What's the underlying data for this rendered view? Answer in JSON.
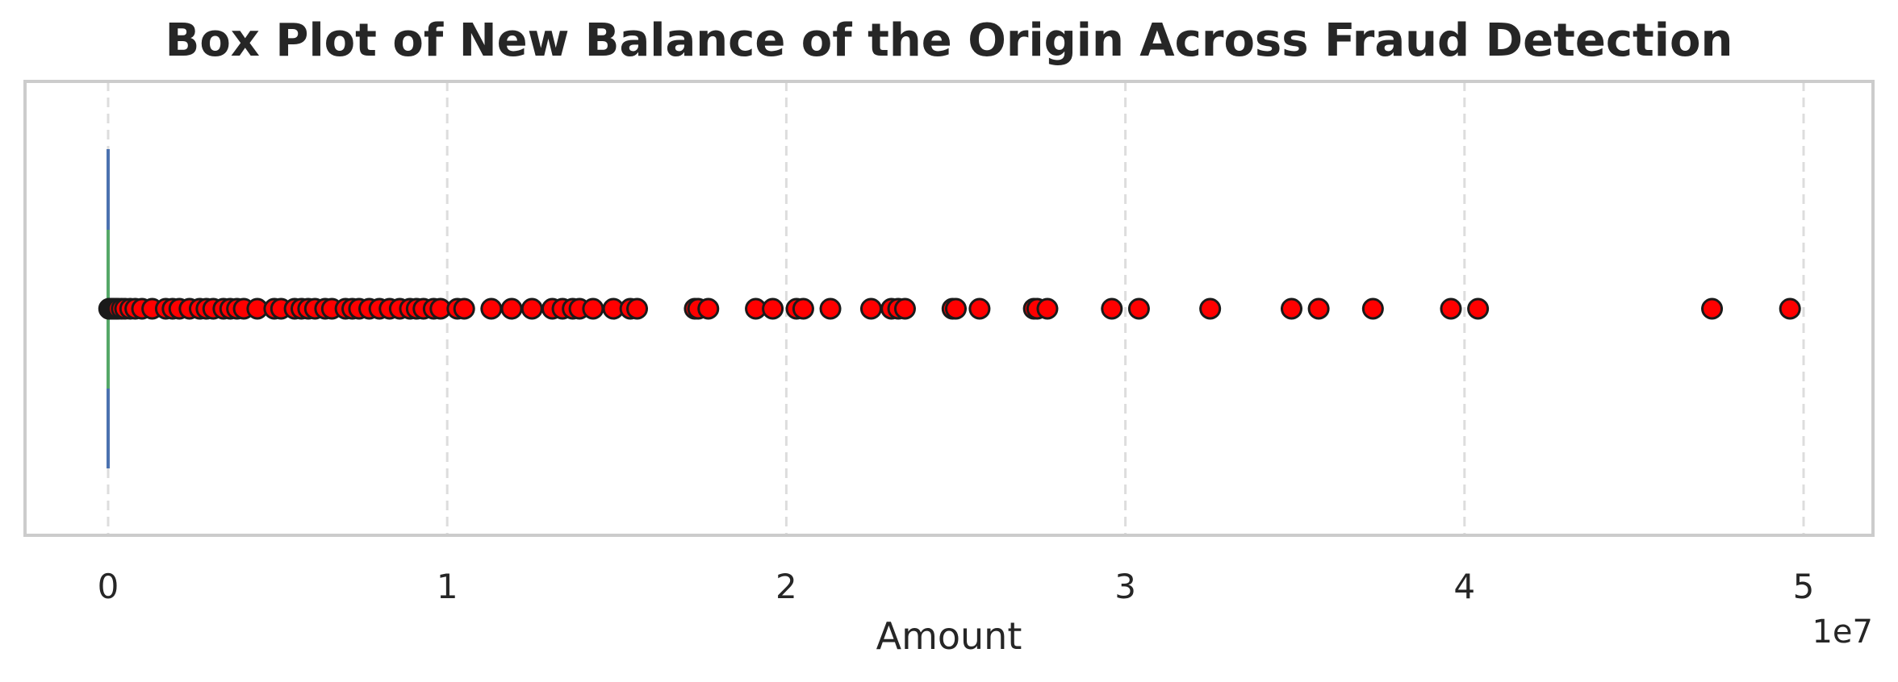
{
  "chart_data": {
    "type": "box",
    "title": "Box Plot of New Balance of the Origin Across Fraud Detection",
    "xlabel": "Amount",
    "ylabel": "",
    "x_offset_label": "1e7",
    "x_tick_labels": [
      "0",
      "1",
      "2",
      "3",
      "4",
      "5"
    ],
    "x_ticks_scaled": [
      0,
      1,
      2,
      3,
      4,
      5
    ],
    "x_scale": 10000000,
    "xlim_scaled": [
      -0.25,
      5.21
    ],
    "grid": "x, dashed",
    "legend": "none",
    "box": {
      "min": 0,
      "q1": 0,
      "median": 0,
      "q3": 0,
      "max": 0
    },
    "outliers_scaled": [
      0.003,
      0.006,
      0.01,
      0.015,
      0.02,
      0.025,
      0.03,
      0.04,
      0.05,
      0.065,
      0.08,
      0.1,
      0.13,
      0.17,
      0.19,
      0.21,
      0.24,
      0.27,
      0.29,
      0.31,
      0.34,
      0.36,
      0.38,
      0.4,
      0.44,
      0.49,
      0.51,
      0.55,
      0.57,
      0.59,
      0.61,
      0.64,
      0.66,
      0.7,
      0.72,
      0.74,
      0.77,
      0.8,
      0.83,
      0.86,
      0.89,
      0.91,
      0.93,
      0.96,
      0.98,
      1.03,
      1.05,
      1.13,
      1.19,
      1.25,
      1.31,
      1.34,
      1.37,
      1.39,
      1.43,
      1.49,
      1.54,
      1.56,
      1.73,
      1.74,
      1.77,
      1.91,
      1.96,
      2.03,
      2.05,
      2.13,
      2.25,
      2.31,
      2.33,
      2.35,
      2.49,
      2.5,
      2.57,
      2.73,
      2.74,
      2.77,
      2.96,
      3.04,
      3.25,
      3.49,
      3.57,
      3.73,
      3.96,
      4.04,
      4.73,
      4.96
    ],
    "colors": {
      "whisker": "#4c72b0",
      "median": "#55a868",
      "outlier_fill": "#ff0000",
      "outlier_edge": "#1a1a1a",
      "frame": "#cccccc",
      "grid": "#dddddd",
      "text": "#262626"
    }
  }
}
